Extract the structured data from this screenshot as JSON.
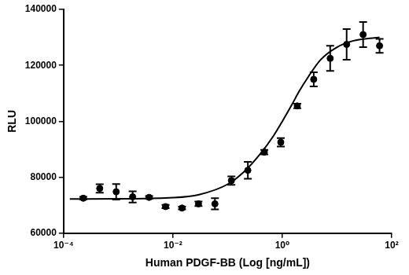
{
  "chart_data": {
    "type": "scatter",
    "x_label": "Human PDGF-BB (Log [ng/mL])",
    "y_label": "RLU",
    "log": "x",
    "grid": false,
    "xlim": [
      0.0001,
      100
    ],
    "xticks": [
      {
        "value": 0.0001,
        "label": "10⁻⁴"
      },
      {
        "value": 0.01,
        "label": "10⁻²"
      },
      {
        "value": 1,
        "label": "10⁰"
      },
      {
        "value": 100,
        "label": "10²"
      }
    ],
    "ylim": [
      60000,
      140000
    ],
    "yticks": [
      60000,
      80000,
      100000,
      120000,
      140000
    ],
    "series": [
      {
        "type": "scatter",
        "marker": "circle",
        "color": "#000000",
        "x": [
          0.000229,
          0.000458,
          0.000916,
          0.001831,
          0.003662,
          0.007324,
          0.01465,
          0.0293,
          0.05859,
          0.1171875,
          0.234375,
          0.46875,
          0.9375,
          1.875,
          3.75,
          7.5,
          15,
          30,
          60
        ],
        "values": [
          72500,
          76000,
          74800,
          73000,
          72800,
          69500,
          69000,
          70500,
          70500,
          78800,
          82500,
          89000,
          92500,
          105500,
          115000,
          122500,
          127500,
          131000,
          127000
        ],
        "errors": [
          500,
          1500,
          2800,
          2000,
          500,
          600,
          500,
          800,
          2000,
          1500,
          3000,
          800,
          1500,
          800,
          2500,
          4500,
          5500,
          4500,
          2500
        ]
      },
      {
        "type": "line",
        "line_style": "solid",
        "color": "#000000",
        "x": [
          0.00013,
          0.001,
          0.01,
          0.03,
          0.1,
          0.2,
          0.4,
          0.7,
          1,
          1.5,
          2,
          3,
          5,
          10,
          20,
          40,
          60
        ],
        "values": [
          72200,
          72300,
          72700,
          73800,
          77500,
          82000,
          88500,
          95000,
          100000,
          106000,
          110500,
          116000,
          122000,
          126500,
          128800,
          129700,
          130000
        ]
      }
    ]
  }
}
